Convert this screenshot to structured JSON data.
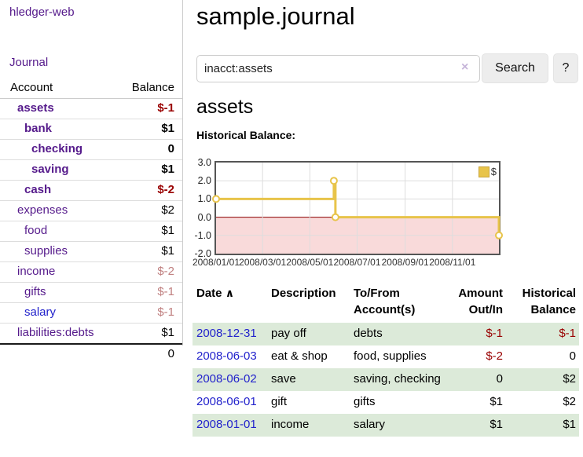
{
  "colors": {
    "link_purple": "#551a8b",
    "link_blue": "#2222cc",
    "negative_strong": "#990000",
    "negative_soft": "#c08080",
    "row_green": "#dcead9",
    "chart_gold": "#e8c44a",
    "chart_negative_fill": "#f9dada",
    "chart_zero_line": "#8b0000",
    "chart_grid": "#dddddd"
  },
  "sidebar": {
    "app_title": "hledger-web",
    "journal_link": "Journal",
    "accounts": {
      "header_account": "Account",
      "header_balance": "Balance",
      "rows": [
        {
          "name": "assets",
          "balance": "$-1"
        },
        {
          "name": "bank",
          "balance": "$1"
        },
        {
          "name": "checking",
          "balance": "0"
        },
        {
          "name": "saving",
          "balance": "$1"
        },
        {
          "name": "cash",
          "balance": "$-2"
        },
        {
          "name": "expenses",
          "balance": "$2"
        },
        {
          "name": "food",
          "balance": "$1"
        },
        {
          "name": "supplies",
          "balance": "$1"
        },
        {
          "name": "income",
          "balance": "$-2"
        },
        {
          "name": "gifts",
          "balance": "$-1"
        },
        {
          "name": "salary",
          "balance": "$-1"
        },
        {
          "name": "liabilities:debts",
          "balance": "$1"
        }
      ],
      "total": "0"
    }
  },
  "main": {
    "title": "sample.journal",
    "search": {
      "value": "inacct:assets",
      "clear_icon": "×",
      "search_button": "Search",
      "help_button": "?"
    },
    "heading": "assets",
    "chart_title": "Historical Balance:"
  },
  "chart_data": {
    "type": "line",
    "step": true,
    "title": "Historical Balance",
    "legend": [
      {
        "label": "$",
        "color": "#e8c44a"
      }
    ],
    "series": [
      {
        "name": "$",
        "points": [
          [
            "2008-01-01",
            1
          ],
          [
            "2008-06-01",
            2
          ],
          [
            "2008-06-03",
            0
          ],
          [
            "2008-12-31",
            -1
          ]
        ]
      }
    ],
    "x_range": [
      "2008-01-01",
      "2008-12-31"
    ],
    "x_tick_dates": [
      "2008-01-01",
      "2008-03-01",
      "2008-05-01",
      "2008-07-01",
      "2008-09-01",
      "2008-11-01"
    ],
    "x_tick_labels": [
      "2008/01/01",
      "2008/03/01",
      "2008/05/01",
      "2008/07/01",
      "2008/09/01",
      "2008/11/01"
    ],
    "y_ticks": [
      3,
      2,
      1,
      0,
      -1,
      -2
    ],
    "ylim": [
      -2,
      3
    ],
    "grid": true,
    "legend_position": "top-right",
    "negative_region_shaded": true
  },
  "register": {
    "headers": {
      "date": "Date",
      "sort_icon": "∧",
      "description": "Description",
      "accounts": "To/From Account(s)",
      "amount": "Amount Out/In",
      "balance": "Historical Balance"
    },
    "rows": [
      {
        "date": "2008-12-31",
        "description": "pay off",
        "accounts": "debts",
        "amount": "$-1",
        "balance": "$-1"
      },
      {
        "date": "2008-06-03",
        "description": "eat & shop",
        "accounts": "food, supplies",
        "amount": "$-2",
        "balance": "0"
      },
      {
        "date": "2008-06-02",
        "description": "save",
        "accounts": "saving, checking",
        "amount": "0",
        "balance": "$2"
      },
      {
        "date": "2008-06-01",
        "description": "gift",
        "accounts": "gifts",
        "amount": "$1",
        "balance": "$2"
      },
      {
        "date": "2008-01-01",
        "description": "income",
        "accounts": "salary",
        "amount": "$1",
        "balance": "$1"
      }
    ]
  }
}
